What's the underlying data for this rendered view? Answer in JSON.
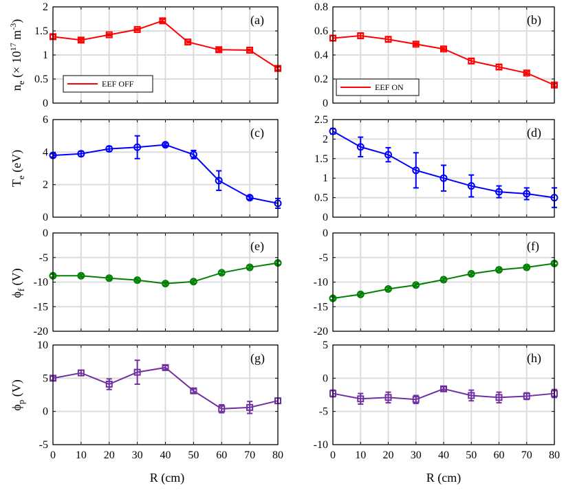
{
  "chart_data": [
    {
      "id": "a",
      "type": "line",
      "panel_label": "(a)",
      "color": "#ff0000",
      "marker": "square",
      "ylim": [
        0,
        2
      ],
      "yticks": [
        "0",
        "0.5",
        "1",
        "1.5",
        "2"
      ],
      "ytick_values": [
        0,
        0.5,
        1,
        1.5,
        2
      ],
      "legend": "EEF OFF",
      "x": [
        0,
        10,
        20,
        30,
        39,
        48,
        59,
        70,
        80
      ],
      "values": [
        1.38,
        1.31,
        1.42,
        1.53,
        1.71,
        1.27,
        1.11,
        1.1,
        0.72
      ],
      "errors": [
        0.04,
        0.03,
        0.02,
        0.02,
        0.03,
        0.02,
        0.03,
        0.02,
        0.03
      ]
    },
    {
      "id": "b",
      "type": "line",
      "panel_label": "(b)",
      "color": "#ff0000",
      "marker": "square",
      "ylim": [
        0,
        0.8
      ],
      "yticks": [
        "0",
        "0.2",
        "0.4",
        "0.6",
        "0.8"
      ],
      "ytick_values": [
        0,
        0.2,
        0.4,
        0.6,
        0.8
      ],
      "legend": "EEF ON",
      "x": [
        0,
        10,
        20,
        30,
        40,
        50,
        60,
        70,
        80
      ],
      "values": [
        0.54,
        0.56,
        0.53,
        0.49,
        0.45,
        0.35,
        0.3,
        0.25,
        0.15
      ],
      "errors": [
        0.02,
        0.02,
        0.02,
        0.01,
        0.01,
        0.02,
        0.02,
        0.01,
        0.01
      ]
    },
    {
      "id": "c",
      "type": "line",
      "panel_label": "(c)",
      "color": "#0000ff",
      "marker": "circle",
      "ylim": [
        0,
        6
      ],
      "yticks": [
        "0",
        "2",
        "4",
        "6"
      ],
      "ytick_values": [
        0,
        2,
        4,
        6
      ],
      "x": [
        0,
        10,
        20,
        30,
        40,
        50,
        59,
        70,
        80
      ],
      "values": [
        3.8,
        3.9,
        4.2,
        4.3,
        4.45,
        3.85,
        2.25,
        1.2,
        0.85
      ],
      "errors": [
        0.1,
        0.15,
        0.15,
        0.7,
        0.1,
        0.25,
        0.6,
        0.1,
        0.3
      ]
    },
    {
      "id": "d",
      "type": "line",
      "panel_label": "(d)",
      "color": "#0000ff",
      "marker": "circle",
      "ylim": [
        0,
        2.5
      ],
      "yticks": [
        "0",
        "0.5",
        "1",
        "1.5",
        "2",
        "2.5"
      ],
      "ytick_values": [
        0,
        0.5,
        1,
        1.5,
        2,
        2.5
      ],
      "x": [
        0,
        10,
        20,
        30,
        40,
        50,
        60,
        70,
        80
      ],
      "values": [
        2.2,
        1.8,
        1.6,
        1.2,
        1.0,
        0.8,
        0.65,
        0.6,
        0.5
      ],
      "errors": [
        0.07,
        0.25,
        0.18,
        0.45,
        0.33,
        0.28,
        0.15,
        0.15,
        0.25
      ]
    },
    {
      "id": "e",
      "type": "line",
      "panel_label": "(e)",
      "color": "#008000",
      "marker": "circle",
      "ylim": [
        -20,
        0
      ],
      "yticks": [
        "-20",
        "-15",
        "-10",
        "-5",
        "0"
      ],
      "ytick_values": [
        -20,
        -15,
        -10,
        -5,
        0
      ],
      "x": [
        0,
        10,
        20,
        30,
        40,
        50,
        60,
        70,
        80
      ],
      "values": [
        -8.7,
        -8.7,
        -9.2,
        -9.6,
        -10.3,
        -9.9,
        -8.1,
        -7.0,
        -6.1
      ],
      "errors": [
        0.3,
        0.3,
        0.3,
        0.3,
        0.3,
        0.3,
        0.3,
        0.3,
        0.3
      ]
    },
    {
      "id": "f",
      "type": "line",
      "panel_label": "(f)",
      "color": "#008000",
      "marker": "circle",
      "ylim": [
        -20,
        0
      ],
      "yticks": [
        "-20",
        "-15",
        "-10",
        "-5",
        "0"
      ],
      "ytick_values": [
        -20,
        -15,
        -10,
        -5,
        0
      ],
      "x": [
        0,
        10,
        20,
        30,
        40,
        50,
        60,
        70,
        80
      ],
      "values": [
        -13.3,
        -12.5,
        -11.4,
        -10.6,
        -9.5,
        -8.3,
        -7.5,
        -7.0,
        -6.2
      ],
      "errors": [
        0.3,
        0.3,
        0.3,
        0.3,
        0.3,
        0.3,
        0.3,
        0.3,
        0.3
      ]
    },
    {
      "id": "g",
      "type": "line",
      "panel_label": "(g)",
      "color": "#7030a0",
      "marker": "square",
      "ylim": [
        -5,
        10
      ],
      "yticks": [
        "-5",
        "0",
        "5",
        "10"
      ],
      "ytick_values": [
        -5,
        0,
        5,
        10
      ],
      "x": [
        0,
        10,
        20,
        30,
        40,
        50,
        60,
        70,
        80
      ],
      "values": [
        5.0,
        5.8,
        4.1,
        5.9,
        6.6,
        3.1,
        0.4,
        0.6,
        1.6
      ],
      "errors": [
        0.3,
        0.4,
        0.8,
        1.8,
        0.3,
        0.3,
        0.6,
        0.9,
        0.4
      ]
    },
    {
      "id": "h",
      "type": "line",
      "panel_label": "(h)",
      "color": "#7030a0",
      "marker": "square",
      "ylim": [
        -10,
        5
      ],
      "yticks": [
        "-10",
        "-5",
        "0",
        "5"
      ],
      "ytick_values": [
        -10,
        -5,
        0,
        5
      ],
      "x": [
        0,
        10,
        20,
        30,
        40,
        50,
        60,
        70,
        80
      ],
      "values": [
        -2.3,
        -3.1,
        -2.9,
        -3.2,
        -1.6,
        -2.6,
        -2.9,
        -2.7,
        -2.3
      ],
      "errors": [
        0.5,
        0.8,
        0.8,
        0.6,
        0.3,
        0.8,
        0.8,
        0.5,
        0.6
      ]
    }
  ],
  "xlim": [
    0,
    80
  ],
  "xticks": [
    "0",
    "10",
    "20",
    "30",
    "40",
    "50",
    "60",
    "70",
    "80"
  ],
  "xtick_values": [
    0,
    10,
    20,
    30,
    40,
    50,
    60,
    70,
    80
  ],
  "xlabel": "R (cm)",
  "ylabels": {
    "ne_base": "n",
    "ne_sub": "e",
    "ne_paren": "(× 10",
    "ne_exp": "17",
    "ne_unit": " m",
    "ne_unit_exp": "-3",
    "ne_close": ")",
    "te_base": "T",
    "te_sub": "e",
    "te_unit": "(eV)",
    "phif_base": "ϕ",
    "phif_sub": "f",
    "phif_unit": "(V)",
    "phip_base": "ϕ",
    "phip_sub": "p",
    "phip_unit": "(V)"
  }
}
